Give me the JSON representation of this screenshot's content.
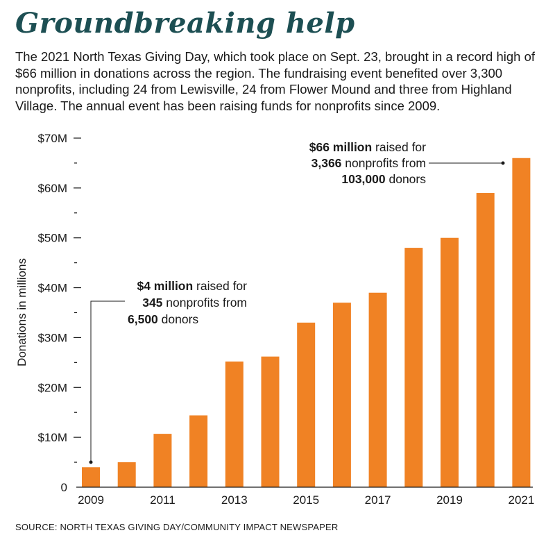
{
  "header": {
    "title": "Groundbreaking help",
    "description": "The 2021 North Texas Giving Day, which took place on Sept. 23, brought in a record high of $66 million in donations across the region. The fundraising event benefited over 3,300 nonprofits, including 24 from Lewisville, 24 from Flower Mound and three from Highland Village. The annual event has been raising funds for nonprofits since 2009."
  },
  "chart_data": {
    "type": "bar",
    "categories": [
      "2009",
      "2010",
      "2011",
      "2012",
      "2013",
      "2014",
      "2015",
      "2016",
      "2017",
      "2018",
      "2019",
      "2020",
      "2021"
    ],
    "values": [
      4,
      5,
      10.7,
      14.4,
      25.2,
      26.2,
      33,
      37,
      39,
      48,
      50,
      59,
      66
    ],
    "ylabel": "Donations in millions",
    "ylim": [
      0,
      70
    ],
    "y_major_ticks": [
      0,
      10,
      20,
      30,
      40,
      50,
      60,
      70
    ],
    "y_tick_labels": [
      "0",
      "$10M",
      "$20M",
      "$30M",
      "$40M",
      "$50M",
      "$60M",
      "$70M"
    ],
    "x_tick_labels": [
      "2009",
      "2011",
      "2013",
      "2015",
      "2017",
      "2019",
      "2021"
    ],
    "bar_color": "#f08224",
    "grid": false,
    "annotations": [
      {
        "target": "2009",
        "bold1": "$4 million",
        "text1": " raised for",
        "bold2": "345",
        "text2": " nonprofits from",
        "bold3": "6,500",
        "text3": " donors"
      },
      {
        "target": "2021",
        "bold1": "$66 million",
        "text1": " raised for",
        "bold2": "3,366",
        "text2": " nonprofits from",
        "bold3": "103,000",
        "text3": " donors"
      }
    ]
  },
  "footer": {
    "source": "SOURCE: NORTH TEXAS GIVING DAY/COMMUNITY IMPACT NEWSPAPER"
  }
}
